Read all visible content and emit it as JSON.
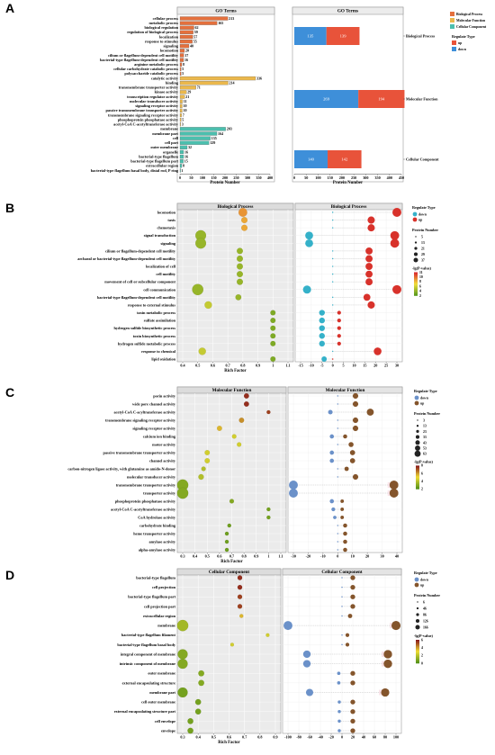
{
  "charts": {
    "A": {
      "letter": "A",
      "type": "bar",
      "left": {
        "title": "GO Terms",
        "xlabel": "Protein Number",
        "xticks": [
          "0",
          "50",
          "100",
          "150",
          "200",
          "250",
          "300",
          "350",
          "400"
        ],
        "xlim": [
          0,
          400
        ],
        "rows": [
          {
            "label": "cellular process",
            "value": 213,
            "cat": 0
          },
          {
            "label": "metabolic process",
            "value": 165,
            "cat": 0
          },
          {
            "label": "biological regulation",
            "value": 62,
            "cat": 0
          },
          {
            "label": "regulation of biological process",
            "value": 59,
            "cat": 0
          },
          {
            "label": "localization",
            "value": 57,
            "cat": 0
          },
          {
            "label": "response to stimulus",
            "value": 55,
            "cat": 0
          },
          {
            "label": "signaling",
            "value": 40,
            "cat": 0
          },
          {
            "label": "locomotion",
            "value": 20,
            "cat": 0
          },
          {
            "label": "cilium or flagellum-dependent cell motility",
            "value": 17,
            "cat": 0
          },
          {
            "label": "bacterial-type flagellum-dependent cell motility",
            "value": 16,
            "cat": 0
          },
          {
            "label": "arginine metabolic process",
            "value": 8,
            "cat": 0
          },
          {
            "label": "cellular carbohydrate catabolic process",
            "value": 5,
            "cat": 0
          },
          {
            "label": "polysaccharide catabolic process",
            "value": 5,
            "cat": 0
          },
          {
            "label": "catalytic activity",
            "value": 336,
            "cat": 1
          },
          {
            "label": "binding",
            "value": 214,
            "cat": 1
          },
          {
            "label": "transmembrane transporter activity",
            "value": 71,
            "cat": 1
          },
          {
            "label": "kinase activity",
            "value": 29,
            "cat": 1
          },
          {
            "label": "transcription regulator activity",
            "value": 21,
            "cat": 1
          },
          {
            "label": "molecular transducer activity",
            "value": 11,
            "cat": 1
          },
          {
            "label": "signaling receptor activity",
            "value": 10,
            "cat": 1
          },
          {
            "label": "passive transmembrane transporter activity",
            "value": 10,
            "cat": 1
          },
          {
            "label": "transmembrane signaling receptor activity",
            "value": 7,
            "cat": 1
          },
          {
            "label": "phosphoprotein phosphatase activity",
            "value": 5,
            "cat": 1
          },
          {
            "label": "acetyl-CoA C-acetyltransferase activity",
            "value": 3,
            "cat": 1
          },
          {
            "label": "membrane",
            "value": 203,
            "cat": 2
          },
          {
            "label": "membrane part",
            "value": 164,
            "cat": 2
          },
          {
            "label": "cell",
            "value": 135,
            "cat": 2
          },
          {
            "label": "cell part",
            "value": 129,
            "cat": 2
          },
          {
            "label": "outer membrane",
            "value": 32,
            "cat": 2
          },
          {
            "label": "organelle",
            "value": 16,
            "cat": 2
          },
          {
            "label": "bacterial-type flagellum",
            "value": 16,
            "cat": 2
          },
          {
            "label": "bacterial-type flagellum part",
            "value": 15,
            "cat": 2
          },
          {
            "label": "extracellular region",
            "value": 8,
            "cat": 2
          },
          {
            "label": "bacterial-type flagellum basal body, distal rod, P ring",
            "value": 1,
            "cat": 2
          }
        ]
      },
      "right": {
        "title": "GO Terms",
        "xlabel": "Protein Number",
        "xticks": [
          "0",
          "50",
          "100",
          "150",
          "200",
          "250",
          "300",
          "350",
          "400",
          "450"
        ],
        "xlim": [
          0,
          450
        ],
        "groups": [
          {
            "label": "Biological Process",
            "down": 135,
            "up": 139
          },
          {
            "label": "Molecular Function",
            "down": 269,
            "up": 194
          },
          {
            "label": "Cellular Component",
            "down": 140,
            "up": 142
          }
        ]
      },
      "legend_cat": [
        "Biological Process",
        "Molecular Function",
        "Cellular Component"
      ],
      "legend_reg_title": "Regulate Type",
      "legend_reg": [
        "up",
        "down"
      ]
    },
    "B": {
      "letter": "B",
      "left_title": "Biological Process",
      "right_title": "Biological Process",
      "xlabel": "Rich Factor",
      "xticks": [
        "0.4",
        "0.5",
        "0.6",
        "0.7",
        "0.8",
        "0.9",
        "1",
        "1.1"
      ],
      "xlim": [
        0.4,
        1.1
      ],
      "rticks": [
        "-15",
        "-10",
        "-5",
        "0",
        "5",
        "10",
        "15",
        "20",
        "25",
        "30"
      ],
      "rlim": [
        -15,
        30
      ],
      "rows": [
        {
          "label": "locomotion",
          "rf": 0.8,
          "n": 20,
          "p": 0.7,
          "dn": 0,
          "up": 30
        },
        {
          "label": "taxis",
          "rf": 0.81,
          "n": 8,
          "p": 0.65,
          "dn": 0,
          "up": 18
        },
        {
          "label": "chemotaxis",
          "rf": 0.81,
          "n": 8,
          "p": 0.65,
          "dn": 0,
          "up": 18
        },
        {
          "label": "signal transduction",
          "rf": 0.52,
          "n": 33,
          "p": 0.2,
          "dn": -11,
          "up": 29
        },
        {
          "label": "signaling",
          "rf": 0.52,
          "n": 33,
          "p": 0.2,
          "dn": -11,
          "up": 29
        },
        {
          "label": "cilium or flagellum-dependent cell motility",
          "rf": 0.78,
          "n": 8,
          "p": 0.2,
          "dn": 0,
          "up": 17
        },
        {
          "label": "archaeal or bacterial-type flagellum-dependent cell motility",
          "rf": 0.78,
          "n": 8,
          "p": 0.2,
          "dn": 0,
          "up": 17
        },
        {
          "label": "localization of cell",
          "rf": 0.78,
          "n": 8,
          "p": 0.2,
          "dn": 0,
          "up": 17
        },
        {
          "label": "cell motility",
          "rf": 0.78,
          "n": 8,
          "p": 0.2,
          "dn": 0,
          "up": 17
        },
        {
          "label": "movement of cell or subcellular component",
          "rf": 0.78,
          "n": 8,
          "p": 0.2,
          "dn": 0,
          "up": 17
        },
        {
          "label": "cell communication",
          "rf": 0.5,
          "n": 37,
          "p": 0.2,
          "dn": -12,
          "up": 30
        },
        {
          "label": "bacterial-type flagellum-dependent cell motility",
          "rf": 0.77,
          "n": 7,
          "p": 0.2,
          "dn": 0,
          "up": 16
        },
        {
          "label": "response to external stimulus",
          "rf": 0.57,
          "n": 13,
          "p": 0.35,
          "dn": 0,
          "up": 18
        },
        {
          "label": "taxin metabolic process",
          "rf": 1,
          "n": 5,
          "p": 0.12,
          "dn": -5,
          "up": 3
        },
        {
          "label": "sulfate assimilation",
          "rf": 1,
          "n": 5,
          "p": 0.12,
          "dn": -5,
          "up": 3
        },
        {
          "label": "hydrogen sulfide biosynthetic process",
          "rf": 1,
          "n": 5,
          "p": 0.12,
          "dn": -5,
          "up": 3
        },
        {
          "label": "toxin biosynthetic process",
          "rf": 1,
          "n": 5,
          "p": 0.12,
          "dn": -5,
          "up": 3
        },
        {
          "label": "hydrogen sulfide metabolic process",
          "rf": 1,
          "n": 5,
          "p": 0.12,
          "dn": -5,
          "up": 3
        },
        {
          "label": "response to chemical",
          "rf": 0.53,
          "n": 13,
          "p": 0.35,
          "dn": 0,
          "up": 21
        },
        {
          "label": "lipid oxidation",
          "rf": 1,
          "n": 5,
          "p": 0.12,
          "dn": -4,
          "up": 0
        }
      ],
      "legend_reg_title": "Regulate Type",
      "legend_reg": [
        "down",
        "up"
      ],
      "legend_size_title": "Protein Number",
      "legend_sizes": [
        "5",
        "13",
        "21",
        "29",
        "37"
      ],
      "legend_color_title": "-lg(P-value)",
      "legend_color_ticks": [
        "11",
        "10",
        "8",
        "6",
        "4",
        "2"
      ]
    },
    "C": {
      "letter": "C",
      "left_title": "Molecular Function",
      "right_title": "Molecular Function",
      "xlabel": "Rich Factor",
      "xticks": [
        "0.3",
        "0.4",
        "0.5",
        "0.6",
        "0.7",
        "0.8",
        "0.9",
        "1",
        "1.1"
      ],
      "xlim": [
        0.3,
        1.1
      ],
      "rticks": [
        "-30",
        "-20",
        "-10",
        "0",
        "10",
        "20",
        "30",
        "40"
      ],
      "rlim": [
        -30,
        40
      ],
      "rows": [
        {
          "label": "porin activity",
          "rf": 0.82,
          "n": 8,
          "p": 0.95,
          "dn": 0,
          "up": 12
        },
        {
          "label": "wide pore channel activity",
          "rf": 0.82,
          "n": 8,
          "p": 0.95,
          "dn": 0,
          "up": 12
        },
        {
          "label": "acetyl-CoA C-acyltransferase activity",
          "rf": 1,
          "n": 3,
          "p": 0.9,
          "dn": -5,
          "up": 22
        },
        {
          "label": "transmembrane signaling receptor activity",
          "rf": 0.78,
          "n": 8,
          "p": 0.7,
          "dn": 0,
          "up": 12
        },
        {
          "label": "signaling receptor activity",
          "rf": 0.6,
          "n": 8,
          "p": 0.6,
          "dn": 0,
          "up": 12
        },
        {
          "label": "calcium ion binding",
          "rf": 0.72,
          "n": 5,
          "p": 0.4,
          "dn": -4,
          "up": 5
        },
        {
          "label": "motor activity",
          "rf": 0.76,
          "n": 5,
          "p": 0.4,
          "dn": 0,
          "up": 9
        },
        {
          "label": "passive transmembrane transporter activity",
          "rf": 0.5,
          "n": 8,
          "p": 0.4,
          "dn": -4,
          "up": 10
        },
        {
          "label": "channel activity",
          "rf": 0.5,
          "n": 8,
          "p": 0.4,
          "dn": -4,
          "up": 10
        },
        {
          "label": "carbon-nitrogen ligase activity, with glutamine as amido-N-donor",
          "rf": 0.47,
          "n": 5,
          "p": 0.3,
          "dn": 0,
          "up": 6
        },
        {
          "label": "molecular transducer activity",
          "rf": 0.45,
          "n": 10,
          "p": 0.3,
          "dn": 0,
          "up": 12
        },
        {
          "label": "transmembrane transporter activity",
          "rf": 0.3,
          "n": 63,
          "p": 0.15,
          "dn": -30,
          "up": 38
        },
        {
          "label": "transporter activity",
          "rf": 0.3,
          "n": 63,
          "p": 0.15,
          "dn": -30,
          "up": 38
        },
        {
          "label": "phosphoprotein phosphatase activity",
          "rf": 0.7,
          "n": 5,
          "p": 0.15,
          "dn": -4,
          "up": 3
        },
        {
          "label": "acetyl-CoA C-acetyltransferase activity",
          "rf": 1,
          "n": 3,
          "p": 0.1,
          "dn": -3,
          "up": 3
        },
        {
          "label": "CoA hydrolase activity",
          "rf": 1,
          "n": 3,
          "p": 0.1,
          "dn": -2,
          "up": 3
        },
        {
          "label": "carbohydrate binding",
          "rf": 0.68,
          "n": 3,
          "p": 0.08,
          "dn": 0,
          "up": 5
        },
        {
          "label": "heme transporter activity",
          "rf": 0.66,
          "n": 3,
          "p": 0.08,
          "dn": 0,
          "up": 5
        },
        {
          "label": "amylase activity",
          "rf": 0.66,
          "n": 3,
          "p": 0.08,
          "dn": 0,
          "up": 5
        },
        {
          "label": "alpha-amylase activity",
          "rf": 0.66,
          "n": 3,
          "p": 0.08,
          "dn": 0,
          "up": 5
        }
      ],
      "legend_reg_title": "Regulate Type",
      "legend_reg": [
        "down",
        "up"
      ],
      "legend_size_title": "Protein Number",
      "legend_sizes": [
        "3",
        "13",
        "23",
        "33",
        "43",
        "53",
        "63"
      ],
      "legend_color_title": "-lg(P-value)",
      "legend_color_ticks": [
        "8",
        "6",
        "4",
        "2"
      ]
    },
    "D": {
      "letter": "D",
      "left_title": "Cellular Component",
      "right_title": "Cellular Component",
      "xlabel": "Rich Factor",
      "xticks": [
        "0.3",
        "0.4",
        "0.5",
        "0.6",
        "0.7",
        "0.8",
        "0.9"
      ],
      "xlim": [
        0.3,
        0.9
      ],
      "rticks": [
        "-100",
        "-80",
        "-60",
        "-40",
        "-20",
        "0",
        "20",
        "40",
        "60",
        "80",
        "100"
      ],
      "rlim": [
        -100,
        100
      ],
      "rows": [
        {
          "label": "bacterial-type flagellum",
          "rf": 0.67,
          "n": 16,
          "p": 0.95,
          "dn": 0,
          "up": 20
        },
        {
          "label": "cell projection",
          "rf": 0.67,
          "n": 16,
          "p": 0.95,
          "dn": 0,
          "up": 20
        },
        {
          "label": "bacterial-type flagellum part",
          "rf": 0.67,
          "n": 15,
          "p": 0.9,
          "dn": 0,
          "up": 20
        },
        {
          "label": "cell projection part",
          "rf": 0.67,
          "n": 15,
          "p": 0.9,
          "dn": 0,
          "up": 20
        },
        {
          "label": "extracellular region",
          "rf": 0.68,
          "n": 8,
          "p": 0.6,
          "dn": 0,
          "up": 15
        },
        {
          "label": "membrane",
          "rf": 0.3,
          "n": 166,
          "p": 0.25,
          "dn": -100,
          "up": 100
        },
        {
          "label": "bacterial-type flagellum filament",
          "rf": 0.85,
          "n": 6,
          "p": 0.4,
          "dn": 0,
          "up": 10
        },
        {
          "label": "bacterial-type flagellum basal body",
          "rf": 0.62,
          "n": 6,
          "p": 0.4,
          "dn": 0,
          "up": 10
        },
        {
          "label": "integral component of membrane",
          "rf": 0.3,
          "n": 126,
          "p": 0.15,
          "dn": -65,
          "up": 85
        },
        {
          "label": "intrinsic component of membrane",
          "rf": 0.3,
          "n": 126,
          "p": 0.15,
          "dn": -65,
          "up": 85
        },
        {
          "label": "outer membrane",
          "rf": 0.42,
          "n": 32,
          "p": 0.15,
          "dn": -6,
          "up": 20
        },
        {
          "label": "external encapsulating structure",
          "rf": 0.42,
          "n": 32,
          "p": 0.15,
          "dn": -6,
          "up": 20
        },
        {
          "label": "membrane part",
          "rf": 0.3,
          "n": 126,
          "p": 0.1,
          "dn": -60,
          "up": 80
        },
        {
          "label": "cell outer membrane",
          "rf": 0.4,
          "n": 30,
          "p": 0.1,
          "dn": -5,
          "up": 20
        },
        {
          "label": "external encapsulating structure part",
          "rf": 0.4,
          "n": 30,
          "p": 0.1,
          "dn": -5,
          "up": 20
        },
        {
          "label": "cell envelope",
          "rf": 0.35,
          "n": 30,
          "p": 0.1,
          "dn": -5,
          "up": 20
        },
        {
          "label": "envelope",
          "rf": 0.35,
          "n": 30,
          "p": 0.1,
          "dn": -5,
          "up": 20
        }
      ],
      "legend_reg_title": "Regulate Type",
      "legend_reg": [
        "down",
        "up"
      ],
      "legend_size_title": "Protein Number",
      "legend_sizes": [
        "6",
        "46",
        "86",
        "126",
        "166"
      ],
      "legend_color_title": "-lg(P-value)",
      "legend_color_ticks": [
        "6",
        "4",
        "2",
        "0"
      ]
    }
  },
  "colors": {
    "bp": "#e4703d",
    "mf": "#ebb84c",
    "cc": "#4cbfae",
    "down": "#3e8fd9",
    "up": "#e8533a",
    "B_down": "#35b1c9",
    "B_up": "#d8322b",
    "C_down": "#6b91c9",
    "C_up": "#84552c",
    "D_down": "#6b91c9",
    "D_up": "#84552c",
    "panel_bg": "#ececec",
    "frame": "#9b9b9b"
  }
}
